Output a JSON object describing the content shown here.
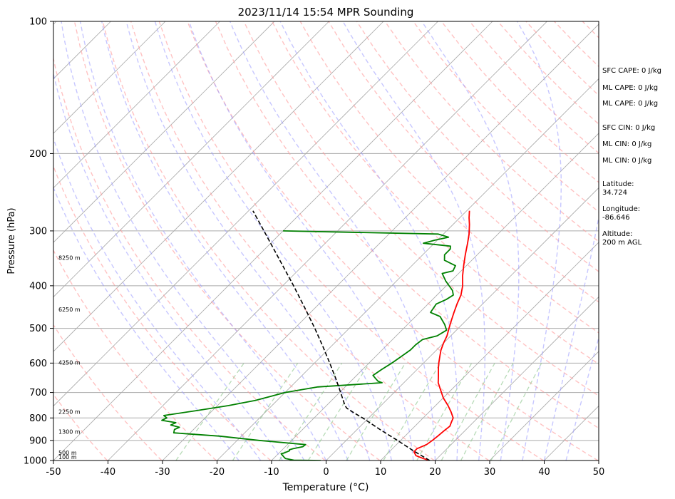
{
  "chart_data": {
    "type": "line",
    "subtype": "skew-t log-p",
    "title": "2023/11/14 15:54 MPR Sounding",
    "xlabel": "Temperature (°C)",
    "ylabel": "Pressure (hPa)",
    "xlim": [
      -50,
      50
    ],
    "ylim": [
      1000,
      100
    ],
    "y_scale": "log",
    "grid": true,
    "x_ticks": [
      "-50",
      "-40",
      "-30",
      "-20",
      "-10",
      "0",
      "10",
      "20",
      "30",
      "40",
      "50"
    ],
    "y_ticks": [
      "100",
      "200",
      "300",
      "400",
      "500",
      "600",
      "700",
      "800",
      "900",
      "1000"
    ],
    "colors": {
      "temperature": "#ff0000",
      "dewpoint": "#008000",
      "parcel": "#000000",
      "isotherm": "#aaaaaa",
      "dry_adiabat": "#ff9999",
      "moist_adiabat": "#9999ff",
      "mixing_ratio": "#99cc99",
      "isobar": "#aaaaaa"
    },
    "series": [
      {
        "key": "temperature",
        "points": [
          [
            1000,
            19
          ],
          [
            990,
            17.5
          ],
          [
            975,
            15.6
          ],
          [
            955,
            14.5
          ],
          [
            940,
            14.5
          ],
          [
            920,
            15.5
          ],
          [
            900,
            15.8
          ],
          [
            880,
            16
          ],
          [
            855,
            16.2
          ],
          [
            835,
            16.4
          ],
          [
            820,
            16
          ],
          [
            800,
            15.5
          ],
          [
            775,
            14
          ],
          [
            750,
            12.3
          ],
          [
            720,
            10
          ],
          [
            690,
            8
          ],
          [
            665,
            6.3
          ],
          [
            640,
            5
          ],
          [
            615,
            3.6
          ],
          [
            600,
            2.8
          ],
          [
            580,
            1.8
          ],
          [
            560,
            0.8
          ],
          [
            540,
            0
          ],
          [
            520,
            -0.7
          ],
          [
            500,
            -1.7
          ],
          [
            480,
            -2.7
          ],
          [
            460,
            -3.7
          ],
          [
            440,
            -4.7
          ],
          [
            420,
            -5.6
          ],
          [
            400,
            -7
          ],
          [
            380,
            -8.8
          ],
          [
            360,
            -10.5
          ],
          [
            340,
            -12.2
          ],
          [
            320,
            -13.9
          ],
          [
            305,
            -15.3
          ],
          [
            290,
            -17
          ],
          [
            280,
            -18.3
          ],
          [
            270,
            -19.5
          ]
        ]
      },
      {
        "key": "dewpoint",
        "points": [
          [
            1000,
            -1
          ],
          [
            998,
            -6
          ],
          [
            990,
            -7.8
          ],
          [
            980,
            -8.5
          ],
          [
            965,
            -9.5
          ],
          [
            960,
            -9
          ],
          [
            950,
            -8.5
          ],
          [
            945,
            -8.7
          ],
          [
            940,
            -8.2
          ],
          [
            930,
            -6.8
          ],
          [
            920,
            -6.7
          ],
          [
            900,
            -16
          ],
          [
            880,
            -24
          ],
          [
            865,
            -33
          ],
          [
            850,
            -33.5
          ],
          [
            840,
            -33
          ],
          [
            830,
            -35
          ],
          [
            820,
            -34.5
          ],
          [
            810,
            -37.5
          ],
          [
            800,
            -37
          ],
          [
            790,
            -38
          ],
          [
            770,
            -33
          ],
          [
            750,
            -28
          ],
          [
            730,
            -24
          ],
          [
            700,
            -20
          ],
          [
            680,
            -15
          ],
          [
            665,
            -4
          ],
          [
            660,
            -5
          ],
          [
            650,
            -6
          ],
          [
            640,
            -7
          ],
          [
            620,
            -6.5
          ],
          [
            600,
            -5.8
          ],
          [
            580,
            -5.3
          ],
          [
            560,
            -4.8
          ],
          [
            545,
            -4.8
          ],
          [
            530,
            -4.5
          ],
          [
            520,
            -2.5
          ],
          [
            505,
            -1.8
          ],
          [
            490,
            -3.2
          ],
          [
            470,
            -5.5
          ],
          [
            460,
            -8
          ],
          [
            440,
            -8.5
          ],
          [
            430,
            -7.5
          ],
          [
            420,
            -7
          ],
          [
            410,
            -8
          ],
          [
            390,
            -11
          ],
          [
            375,
            -13
          ],
          [
            370,
            -11.5
          ],
          [
            360,
            -12
          ],
          [
            350,
            -15
          ],
          [
            340,
            -16
          ],
          [
            330,
            -16
          ],
          [
            325,
            -16.5
          ],
          [
            320,
            -22
          ],
          [
            315,
            -20.5
          ],
          [
            310,
            -18.5
          ],
          [
            305,
            -21
          ],
          [
            300,
            -50
          ]
        ]
      },
      {
        "key": "parcel",
        "points": [
          [
            1000,
            19
          ],
          [
            950,
            14.2
          ],
          [
            900,
            9.4
          ],
          [
            850,
            4.2
          ],
          [
            800,
            -1.1
          ],
          [
            780,
            -3.5
          ],
          [
            760,
            -5.8
          ],
          [
            750,
            -6.6
          ],
          [
            700,
            -9.8
          ],
          [
            650,
            -13.3
          ],
          [
            600,
            -17.2
          ],
          [
            550,
            -21.5
          ],
          [
            500,
            -26.3
          ],
          [
            450,
            -31.8
          ],
          [
            400,
            -38
          ],
          [
            350,
            -45.2
          ],
          [
            300,
            -53.5
          ],
          [
            270,
            -59.2
          ]
        ]
      }
    ],
    "height_labels": [
      {
        "p": 1000,
        "text": "100 m"
      },
      {
        "p": 970,
        "text": "500 m"
      },
      {
        "p": 870,
        "text": "1300 m"
      },
      {
        "p": 783,
        "text": "2250 m"
      },
      {
        "p": 605,
        "text": "4250 m"
      },
      {
        "p": 458,
        "text": "6250 m"
      },
      {
        "p": 349,
        "text": "8250 m"
      }
    ],
    "indices": [
      "SFC CAPE: 0 J/kg",
      "ML CAPE: 0 J/kg",
      "ML CAPE: 0 J/kg",
      "SFC CIN: 0 J/kg",
      "ML CIN: 0 J/kg",
      "ML CIN: 0 J/kg",
      "Latitude:",
      "34.724",
      "Longitude:",
      "-86.646",
      "Altitude:",
      "200 m AGL"
    ]
  }
}
